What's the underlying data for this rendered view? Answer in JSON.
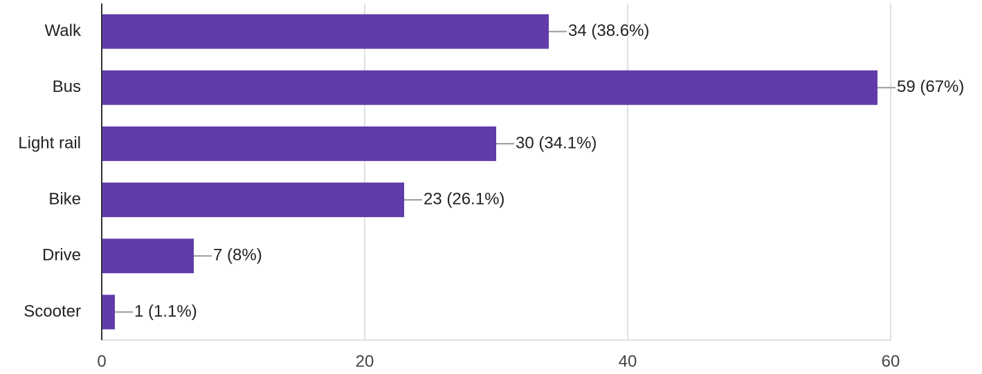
{
  "chart_data": {
    "type": "bar",
    "orientation": "horizontal",
    "categories": [
      "Walk",
      "Bus",
      "Light rail",
      "Bike",
      "Drive",
      "Scooter"
    ],
    "values": [
      34,
      59,
      30,
      23,
      7,
      1
    ],
    "value_labels": [
      "34 (38.6%)",
      "59 (67%)",
      "30 (34.1%)",
      "23 (26.1%)",
      "7 (8%)",
      "1 (1.1%)"
    ],
    "color": "#603cab",
    "xlim": [
      0,
      60
    ],
    "xticks": [
      0,
      20,
      40,
      60
    ],
    "grid": true
  }
}
